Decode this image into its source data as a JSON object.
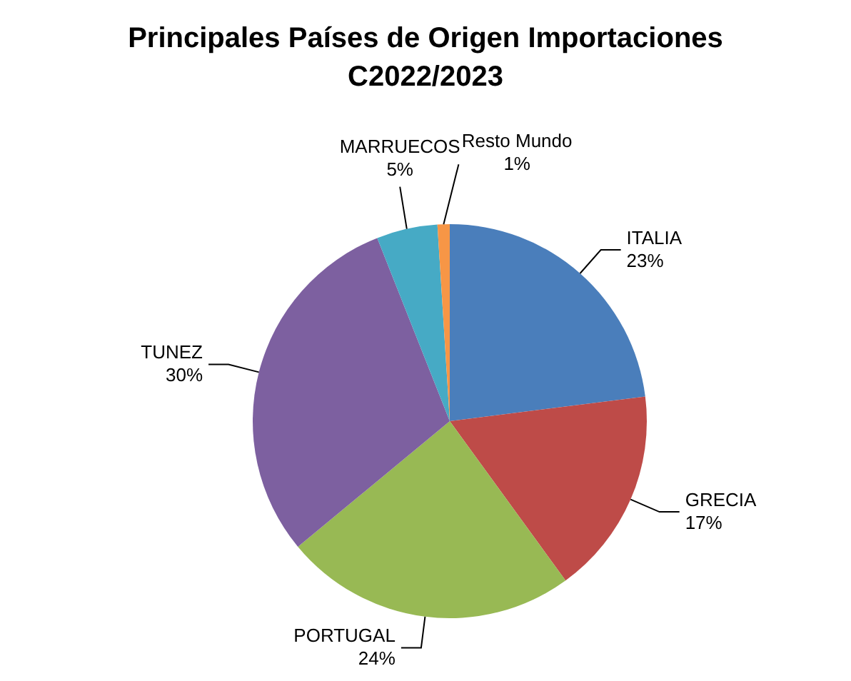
{
  "chart_data": {
    "type": "pie",
    "title": "Principales Países de Origen Importaciones\nC2022/2023",
    "categories": [
      "ITALIA",
      "GRECIA",
      "PORTUGAL",
      "TUNEZ",
      "MARRUECOS",
      "Resto Mundo"
    ],
    "values": [
      23,
      17,
      24,
      30,
      5,
      1
    ],
    "value_labels": [
      "23%",
      "17%",
      "24%",
      "30%",
      "5%",
      "1%"
    ],
    "colors": [
      "#4a7ebb",
      "#be4b48",
      "#98b954",
      "#7d60a0",
      "#46aac5",
      "#f79646"
    ],
    "legend": false
  }
}
